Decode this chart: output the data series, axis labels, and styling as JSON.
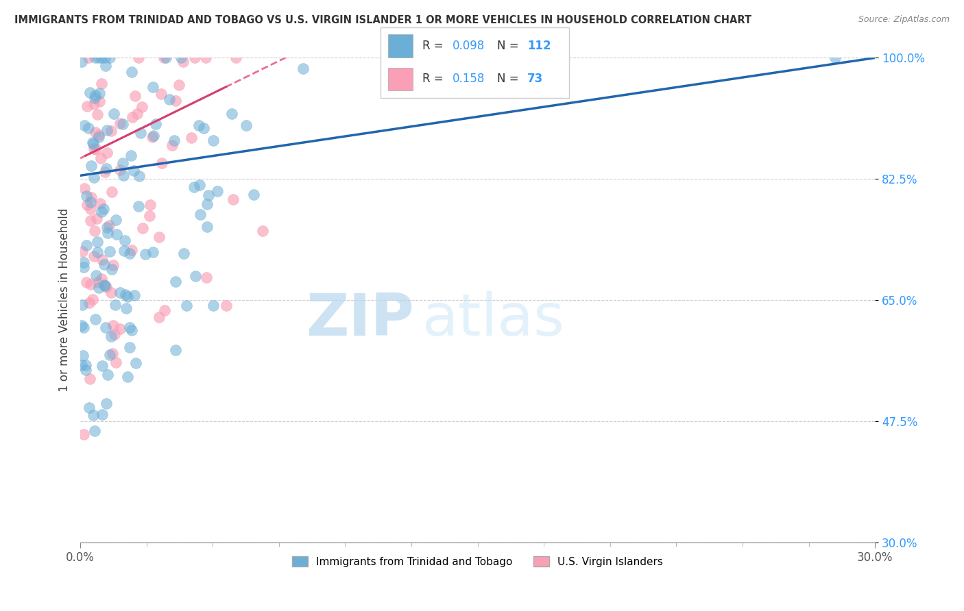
{
  "title": "IMMIGRANTS FROM TRINIDAD AND TOBAGO VS U.S. VIRGIN ISLANDER 1 OR MORE VEHICLES IN HOUSEHOLD CORRELATION CHART",
  "source": "Source: ZipAtlas.com",
  "ylabel": "1 or more Vehicles in Household",
  "xlim": [
    0.0,
    30.0
  ],
  "ylim": [
    30.0,
    100.0
  ],
  "yticks": [
    30.0,
    47.5,
    65.0,
    82.5,
    100.0
  ],
  "xticks": [
    0.0,
    30.0
  ],
  "legend1_label": "Immigrants from Trinidad and Tobago",
  "legend2_label": "U.S. Virgin Islanders",
  "R1": 0.098,
  "N1": 112,
  "R2": 0.158,
  "N2": 73,
  "color_blue": "#6baed6",
  "color_pink": "#fa9fb5",
  "color_blue_line": "#2166ac",
  "color_pink_line": "#e87090",
  "watermark_zip": "ZIP",
  "watermark_atlas": "atlas"
}
